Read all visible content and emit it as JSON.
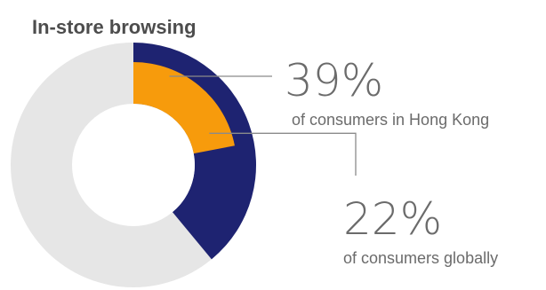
{
  "chart_data": {
    "type": "donut",
    "title": "In-store browsing",
    "rings": [
      {
        "name": "",
        "value": 39,
        "value_label": "39%",
        "description": "of consumers in Hong Kong",
        "color": "#1e2371"
      },
      {
        "name": "",
        "value": 22,
        "value_label": "22%",
        "description": "of consumers globally",
        "color": "#f79b0c"
      }
    ],
    "track_color": "#e6e6e6",
    "hole_color": "#ffffff"
  }
}
